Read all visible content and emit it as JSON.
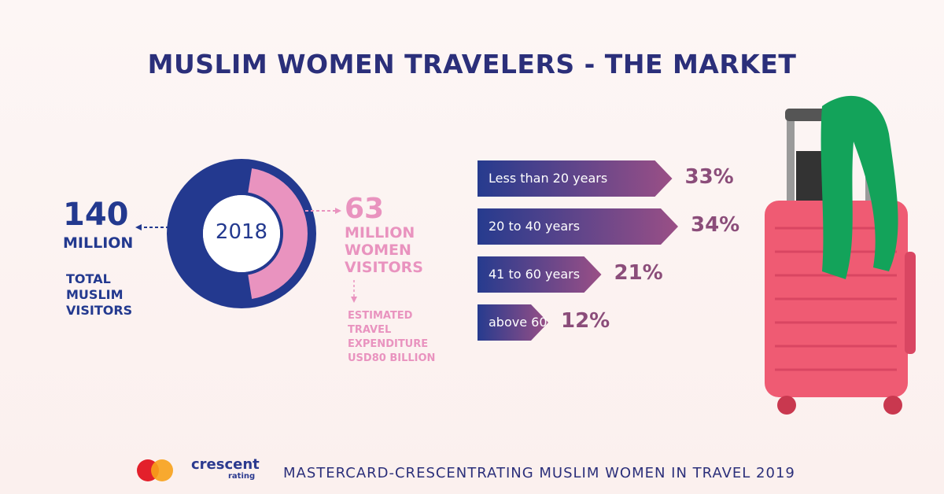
{
  "title": "MUSLIM WOMEN TRAVELERS - THE MARKET",
  "footer": "MASTERCARD-CRESCENTRATING MUSLIM WOMEN IN TRAVEL 2019",
  "logo": {
    "brand": "crescent",
    "sub": "rating"
  },
  "chart_data": [
    {
      "type": "donut",
      "center_label": "2018",
      "total": {
        "value": 140,
        "unit": "MILLION",
        "label": "TOTAL MUSLIM VISITORS",
        "color": "#23398f"
      },
      "part": {
        "value": 63,
        "unit": "MILLION WOMEN VISITORS",
        "note": "ESTIMATED TRAVEL EXPENDITURE USD80 BILLION",
        "color": "#e993bf"
      }
    },
    {
      "type": "bar",
      "categories": [
        "Less than 20 years",
        "20 to 40 years",
        "41 to 60 years",
        "above 60"
      ],
      "values": [
        33,
        34,
        21,
        12
      ],
      "value_labels": [
        "33%",
        "34%",
        "21%",
        "12%"
      ],
      "xlim": [
        0,
        40
      ],
      "color": [
        "#263b8e",
        "#9a4f86"
      ]
    }
  ]
}
